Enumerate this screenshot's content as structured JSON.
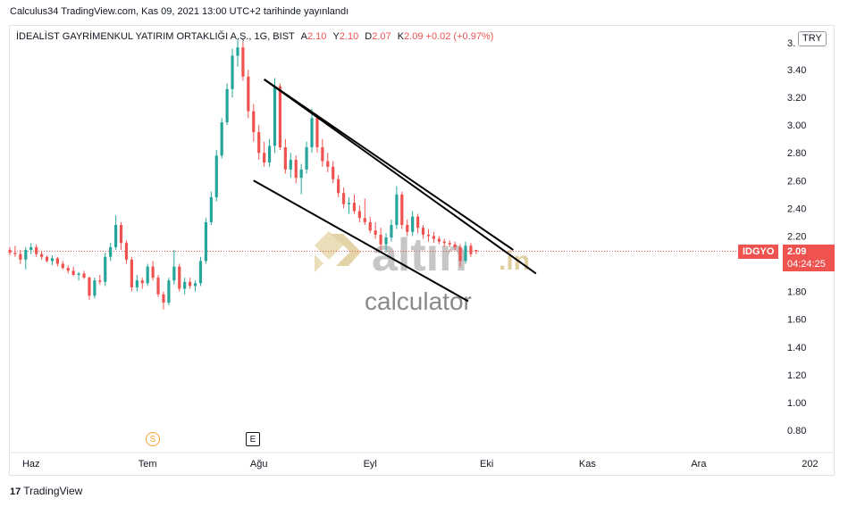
{
  "published": "Calculus34 TradingView.com, Kas 09, 2021 13:00 UTC+2 tarihinde yayınlandı",
  "legend": {
    "symbol": "İDEALİST GAYRİMENKUL YATIRIM ORTAKLIĞI A.Ş., 1G, BIST",
    "open_label": "A",
    "open": "2.10",
    "high_label": "Y",
    "high": "2.10",
    "low_label": "D",
    "low": "2.07",
    "close_label": "K",
    "close": "2.09",
    "change": "+0.02 (+0.97%)"
  },
  "currency": "TRY",
  "price_tag": {
    "ticker": "IDGYO",
    "price": "2.09",
    "countdown": "04:24:25"
  },
  "markers": {
    "splits": "S",
    "earnings": "E"
  },
  "brand": {
    "logo": "17",
    "name": "TradingView"
  },
  "watermark": {
    "text1": "altın",
    "text2": ".in",
    "text3": "calculator"
  },
  "colors": {
    "up": "#26a69a",
    "down": "#ef5350",
    "line": "#000000",
    "watermark": "#b8b8b8",
    "watermark_accent": "#d9c48a"
  },
  "chart_data": {
    "type": "candlestick",
    "title": "İDEALİST GAYRİMENKUL YATIRIM ORTAKLIĞI A.Ş., 1G, BIST",
    "ylim": [
      0.7,
      3.55
    ],
    "y_ticks": [
      "3.40",
      "3.20",
      "3.00",
      "2.80",
      "2.60",
      "2.40",
      "2.20",
      "2.00",
      "1.80",
      "1.60",
      "1.40",
      "1.20",
      "1.00",
      "0.80"
    ],
    "y_tick_partial": "3.",
    "x_ticks": [
      "Haz",
      "Tem",
      "Ağu",
      "Eyl",
      "Eki",
      "Kas",
      "Ara",
      "202"
    ],
    "x_tick_positions": [
      4,
      26,
      47,
      68,
      90,
      109,
      130,
      151
    ],
    "x_range": [
      -1,
      158
    ],
    "last_price": 2.09,
    "candles": [
      [
        2.1,
        2.12,
        2.06,
        2.08
      ],
      [
        2.08,
        2.13,
        2.05,
        2.07
      ],
      [
        2.07,
        2.1,
        2.0,
        2.03
      ],
      [
        2.03,
        2.12,
        1.96,
        2.1
      ],
      [
        2.1,
        2.15,
        2.07,
        2.12
      ],
      [
        2.12,
        2.14,
        2.05,
        2.07
      ],
      [
        2.07,
        2.09,
        2.03,
        2.05
      ],
      [
        2.05,
        2.06,
        2.01,
        2.02
      ],
      [
        2.02,
        2.06,
        1.99,
        2.04
      ],
      [
        2.04,
        2.05,
        1.98,
        2.0
      ],
      [
        2.0,
        2.02,
        1.96,
        1.97
      ],
      [
        1.97,
        1.99,
        1.93,
        1.95
      ],
      [
        1.95,
        1.98,
        1.91,
        1.92
      ],
      [
        1.92,
        1.94,
        1.88,
        1.93
      ],
      [
        1.93,
        1.95,
        1.89,
        1.9
      ],
      [
        1.9,
        1.91,
        1.74,
        1.77
      ],
      [
        1.77,
        1.9,
        1.75,
        1.88
      ],
      [
        1.88,
        1.92,
        1.85,
        1.87
      ],
      [
        1.87,
        2.08,
        1.84,
        2.05
      ],
      [
        2.05,
        2.15,
        2.02,
        2.12
      ],
      [
        2.12,
        2.35,
        2.1,
        2.28
      ],
      [
        2.28,
        2.3,
        2.1,
        2.15
      ],
      [
        2.15,
        2.17,
        2.0,
        2.03
      ],
      [
        2.03,
        2.05,
        1.8,
        1.83
      ],
      [
        1.83,
        1.92,
        1.8,
        1.88
      ],
      [
        1.88,
        1.9,
        1.82,
        1.86
      ],
      [
        1.86,
        2.0,
        1.84,
        1.98
      ],
      [
        1.98,
        2.02,
        1.88,
        1.9
      ],
      [
        1.9,
        1.92,
        1.76,
        1.78
      ],
      [
        1.78,
        1.8,
        1.67,
        1.72
      ],
      [
        1.72,
        1.9,
        1.7,
        1.88
      ],
      [
        1.88,
        2.1,
        1.85,
        1.98
      ],
      [
        1.98,
        2.0,
        1.8,
        1.82
      ],
      [
        1.82,
        1.9,
        1.78,
        1.87
      ],
      [
        1.87,
        1.9,
        1.82,
        1.84
      ],
      [
        1.84,
        1.88,
        1.8,
        1.86
      ],
      [
        1.86,
        2.05,
        1.84,
        2.02
      ],
      [
        2.02,
        2.33,
        2.0,
        2.3
      ],
      [
        2.3,
        2.52,
        2.28,
        2.48
      ],
      [
        2.48,
        2.82,
        2.45,
        2.78
      ],
      [
        2.78,
        3.05,
        2.76,
        3.02
      ],
      [
        3.02,
        3.3,
        3.0,
        3.26
      ],
      [
        3.26,
        3.55,
        3.2,
        3.5
      ],
      [
        3.5,
        3.62,
        3.42,
        3.56
      ],
      [
        3.56,
        3.6,
        3.32,
        3.35
      ],
      [
        3.35,
        3.4,
        3.05,
        3.1
      ],
      [
        3.1,
        3.15,
        2.88,
        2.95
      ],
      [
        2.95,
        3.0,
        2.75,
        2.8
      ],
      [
        2.8,
        2.88,
        2.7,
        2.73
      ],
      [
        2.73,
        2.9,
        2.7,
        2.85
      ],
      [
        2.85,
        3.34,
        2.8,
        3.28
      ],
      [
        3.28,
        3.3,
        2.82,
        2.84
      ],
      [
        2.84,
        2.9,
        2.65,
        2.68
      ],
      [
        2.68,
        2.8,
        2.62,
        2.75
      ],
      [
        2.75,
        2.78,
        2.58,
        2.62
      ],
      [
        2.62,
        2.72,
        2.5,
        2.68
      ],
      [
        2.68,
        2.88,
        2.65,
        2.84
      ],
      [
        2.84,
        3.12,
        2.8,
        3.05
      ],
      [
        3.05,
        3.08,
        2.8,
        2.84
      ],
      [
        2.84,
        2.9,
        2.7,
        2.74
      ],
      [
        2.74,
        2.8,
        2.66,
        2.7
      ],
      [
        2.7,
        2.74,
        2.58,
        2.61
      ],
      [
        2.61,
        2.64,
        2.48,
        2.51
      ],
      [
        2.51,
        2.55,
        2.4,
        2.43
      ],
      [
        2.43,
        2.48,
        2.36,
        2.44
      ],
      [
        2.44,
        2.5,
        2.36,
        2.38
      ],
      [
        2.38,
        2.42,
        2.3,
        2.33
      ],
      [
        2.33,
        2.47,
        2.28,
        2.3
      ],
      [
        2.3,
        2.34,
        2.22,
        2.24
      ],
      [
        2.24,
        2.3,
        2.18,
        2.21
      ],
      [
        2.21,
        2.26,
        2.1,
        2.14
      ],
      [
        2.14,
        2.22,
        2.08,
        2.19
      ],
      [
        2.19,
        2.32,
        2.16,
        2.28
      ],
      [
        2.28,
        2.56,
        2.25,
        2.5
      ],
      [
        2.5,
        2.52,
        2.25,
        2.28
      ],
      [
        2.28,
        2.32,
        2.2,
        2.23
      ],
      [
        2.23,
        2.38,
        2.2,
        2.34
      ],
      [
        2.34,
        2.36,
        2.22,
        2.26
      ],
      [
        2.26,
        2.28,
        2.18,
        2.21
      ],
      [
        2.21,
        2.25,
        2.16,
        2.2
      ],
      [
        2.2,
        2.23,
        2.15,
        2.18
      ],
      [
        2.18,
        2.2,
        2.14,
        2.16
      ],
      [
        2.16,
        2.18,
        2.12,
        2.15
      ],
      [
        2.15,
        2.17,
        2.12,
        2.14
      ],
      [
        2.14,
        2.16,
        2.1,
        2.12
      ],
      [
        2.12,
        2.14,
        1.98,
        2.02
      ],
      [
        2.02,
        2.16,
        2.0,
        2.13
      ],
      [
        2.13,
        2.15,
        2.05,
        2.07
      ],
      [
        2.1,
        2.1,
        2.07,
        2.09
      ]
    ],
    "trendlines": [
      {
        "x1": 48,
        "y1": 3.33,
        "x2": 95,
        "y2": 2.1
      },
      {
        "x1": 48,
        "y1": 3.33,
        "x2": 99.3,
        "y2": 1.93
      },
      {
        "x1": 46,
        "y1": 2.6,
        "x2": 86.5,
        "y2": 1.73
      }
    ]
  }
}
